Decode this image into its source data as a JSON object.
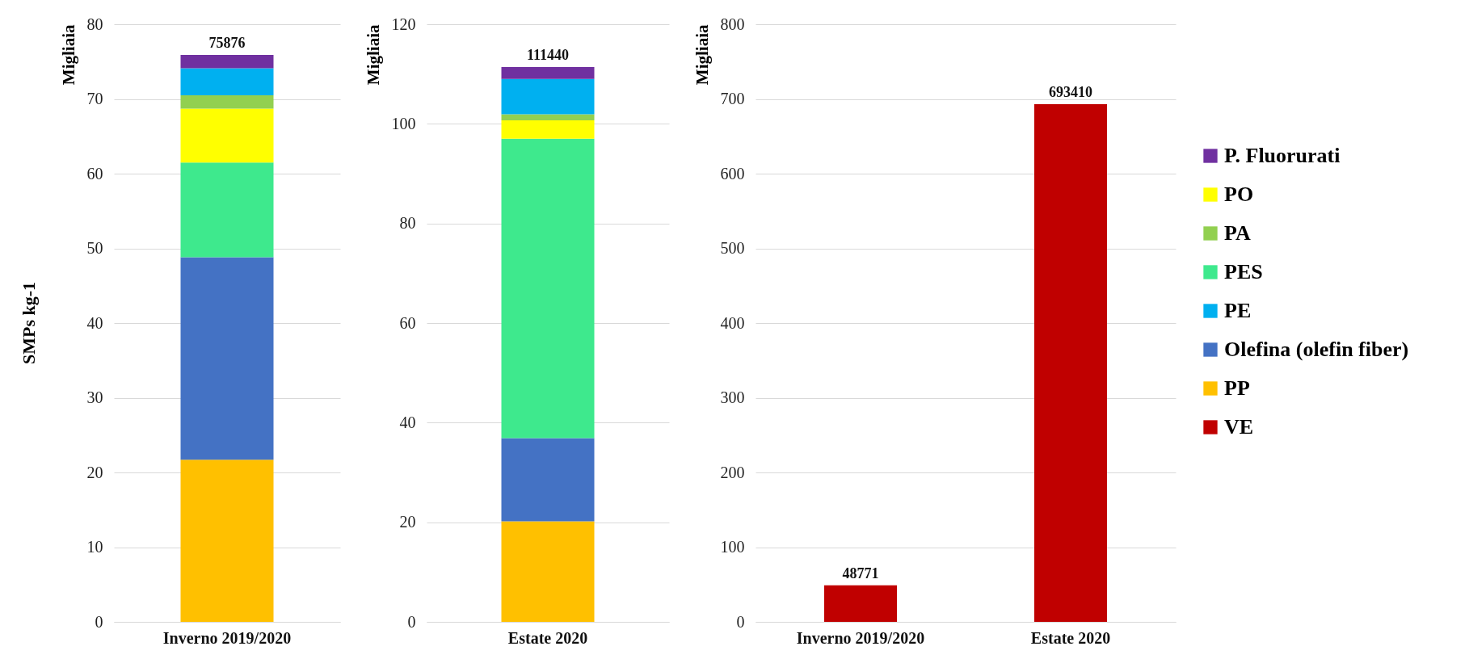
{
  "chart_data": [
    {
      "type": "bar",
      "ylabel": "Migliaia",
      "annotations": [
        "SMPs kg-1",
        {
          "text": "75876",
          "x": "Inverno 2019/2020",
          "y": 75.876
        }
      ],
      "categories": [
        "Inverno 2019/2020"
      ],
      "stacked": true,
      "ylim": [
        0,
        80
      ],
      "yticks": [
        0,
        10,
        20,
        30,
        40,
        50,
        60,
        70,
        80
      ],
      "grid": "y",
      "legend": "right",
      "series": [
        {
          "name": "PP",
          "color": "#ffc000",
          "values": [
            21.7
          ]
        },
        {
          "name": "Olefina (olefin fiber)",
          "color": "#4472c4",
          "values": [
            27.1
          ]
        },
        {
          "name": "PES",
          "color": "#3ee98d",
          "values": [
            12.7
          ]
        },
        {
          "name": "PO",
          "color": "#ffff00",
          "values": [
            7.2
          ]
        },
        {
          "name": "PA",
          "color": "#92d050",
          "values": [
            1.8
          ]
        },
        {
          "name": "PE",
          "color": "#00b0f0",
          "values": [
            3.6
          ]
        },
        {
          "name": "P. Fluorurati",
          "color": "#7030a0",
          "values": [
            1.8
          ]
        }
      ]
    },
    {
      "type": "bar",
      "ylabel": "Migliaia",
      "annotations": [
        {
          "text": "111440",
          "x": "Estate 2020",
          "y": 111.44
        }
      ],
      "categories": [
        "Estate 2020"
      ],
      "stacked": true,
      "ylim": [
        0,
        120
      ],
      "yticks": [
        0,
        20,
        40,
        60,
        80,
        100,
        120
      ],
      "grid": "y",
      "legend": "right",
      "series": [
        {
          "name": "PP",
          "color": "#ffc000",
          "values": [
            20.2
          ]
        },
        {
          "name": "Olefina (olefin fiber)",
          "color": "#4472c4",
          "values": [
            16.7
          ]
        },
        {
          "name": "PES",
          "color": "#3ee98d",
          "values": [
            60.1
          ]
        },
        {
          "name": "PO",
          "color": "#ffff00",
          "values": [
            3.7
          ]
        },
        {
          "name": "PA",
          "color": "#92d050",
          "values": [
            1.2
          ]
        },
        {
          "name": "PE",
          "color": "#00b0f0",
          "values": [
            7.1
          ]
        },
        {
          "name": "P. Fluorurati",
          "color": "#7030a0",
          "values": [
            2.4
          ]
        }
      ]
    },
    {
      "type": "bar",
      "ylabel": "Migliaia",
      "annotations": [
        {
          "text": "48771",
          "x": "Inverno 2019/2020",
          "y": 48.771
        },
        {
          "text": "693410",
          "x": "Estate 2020",
          "y": 693.41
        }
      ],
      "categories": [
        "Inverno 2019/2020",
        "Estate 2020"
      ],
      "ylim": [
        0,
        800
      ],
      "yticks": [
        0,
        100,
        200,
        300,
        400,
        500,
        600,
        700,
        800
      ],
      "grid": "y",
      "legend": "right",
      "series": [
        {
          "name": "P. Fluorurati",
          "color": "#7030a0",
          "values": [
            null,
            null
          ]
        },
        {
          "name": "PO",
          "color": "#ffff00",
          "values": [
            null,
            null
          ]
        },
        {
          "name": "PA",
          "color": "#92d050",
          "values": [
            null,
            null
          ]
        },
        {
          "name": "PES",
          "color": "#3ee98d",
          "values": [
            null,
            null
          ]
        },
        {
          "name": "PE",
          "color": "#00b0f0",
          "values": [
            null,
            null
          ]
        },
        {
          "name": "Olefina (olefin fiber)",
          "color": "#4472c4",
          "values": [
            null,
            null
          ]
        },
        {
          "name": "PP",
          "color": "#ffc000",
          "values": [
            null,
            null
          ]
        },
        {
          "name": "VE",
          "color": "#c00000",
          "values": [
            49,
            693
          ]
        }
      ]
    }
  ]
}
